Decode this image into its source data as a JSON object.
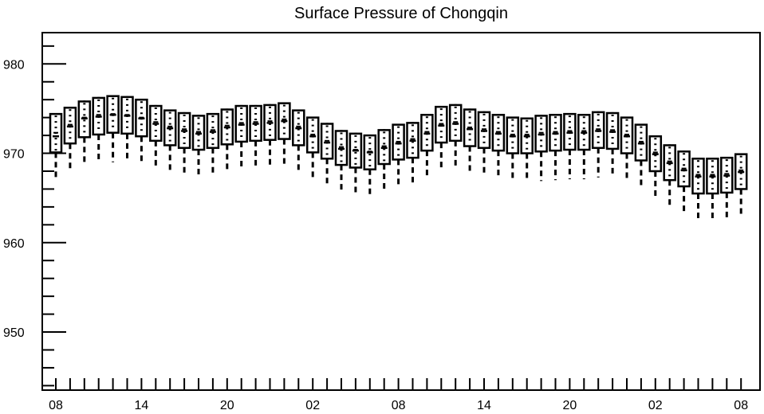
{
  "chart_data": {
    "type": "box",
    "title": "Surface Pressure of Chongqin",
    "xlabel": "",
    "ylabel": "",
    "ylim": [
      943.5,
      983.5
    ],
    "y_ticks": [
      950,
      960,
      970,
      980
    ],
    "y_tick_labels": [
      "950",
      "960",
      "970",
      "980"
    ],
    "x_tick_labels": [
      "08",
      "14",
      "20",
      "02",
      "08",
      "14",
      "20",
      "02",
      "08"
    ],
    "x_tick_positions": [
      0,
      6,
      12,
      18,
      24,
      30,
      36,
      42,
      48
    ],
    "x_tick_units": "hour index",
    "grid": false,
    "colors": {
      "stroke": "#000000",
      "box_fill": "#ffffff",
      "background": "#ffffff"
    },
    "boxes": [
      {
        "x": 0,
        "low": 967.0,
        "q1": 970.1,
        "median": 971.9,
        "q3": 974.4,
        "high": 974.4,
        "mean": 972.3
      },
      {
        "x": 1,
        "low": 968.0,
        "q1": 971.1,
        "median": 973.0,
        "q3": 975.1,
        "high": 975.2,
        "mean": 973.2
      },
      {
        "x": 2,
        "low": 968.6,
        "q1": 971.8,
        "median": 973.9,
        "q3": 975.8,
        "high": 975.9,
        "mean": 974.0
      },
      {
        "x": 3,
        "low": 968.9,
        "q1": 972.1,
        "median": 974.1,
        "q3": 976.2,
        "high": 976.3,
        "mean": 974.3
      },
      {
        "x": 4,
        "low": 969.0,
        "q1": 972.3,
        "median": 974.3,
        "q3": 976.4,
        "high": 976.5,
        "mean": 974.4
      },
      {
        "x": 5,
        "low": 969.1,
        "q1": 972.2,
        "median": 974.2,
        "q3": 976.3,
        "high": 976.4,
        "mean": 974.3
      },
      {
        "x": 6,
        "low": 968.8,
        "q1": 971.9,
        "median": 973.9,
        "q3": 976.0,
        "high": 976.1,
        "mean": 974.0
      },
      {
        "x": 7,
        "low": 968.2,
        "q1": 971.4,
        "median": 973.3,
        "q3": 975.3,
        "high": 975.4,
        "mean": 973.5
      },
      {
        "x": 8,
        "low": 967.7,
        "q1": 970.9,
        "median": 972.8,
        "q3": 974.8,
        "high": 974.9,
        "mean": 973.0
      },
      {
        "x": 9,
        "low": 967.4,
        "q1": 970.6,
        "median": 972.5,
        "q3": 974.5,
        "high": 974.6,
        "mean": 972.7
      },
      {
        "x": 10,
        "low": 967.2,
        "q1": 970.4,
        "median": 972.2,
        "q3": 974.2,
        "high": 974.3,
        "mean": 972.4
      },
      {
        "x": 11,
        "low": 967.5,
        "q1": 970.6,
        "median": 972.4,
        "q3": 974.4,
        "high": 974.5,
        "mean": 972.6
      },
      {
        "x": 12,
        "low": 967.8,
        "q1": 971.0,
        "median": 972.9,
        "q3": 974.9,
        "high": 975.0,
        "mean": 973.1
      },
      {
        "x": 13,
        "low": 968.1,
        "q1": 971.3,
        "median": 973.2,
        "q3": 975.3,
        "high": 975.4,
        "mean": 973.4
      },
      {
        "x": 14,
        "low": 968.2,
        "q1": 971.4,
        "median": 973.3,
        "q3": 975.3,
        "high": 975.4,
        "mean": 973.5
      },
      {
        "x": 15,
        "low": 968.3,
        "q1": 971.5,
        "median": 973.4,
        "q3": 975.4,
        "high": 975.5,
        "mean": 973.6
      },
      {
        "x": 16,
        "low": 968.4,
        "q1": 971.6,
        "median": 973.6,
        "q3": 975.6,
        "high": 975.7,
        "mean": 973.8
      },
      {
        "x": 17,
        "low": 967.7,
        "q1": 970.9,
        "median": 972.8,
        "q3": 974.8,
        "high": 974.9,
        "mean": 973.0
      },
      {
        "x": 18,
        "low": 966.9,
        "q1": 970.1,
        "median": 971.9,
        "q3": 974.0,
        "high": 974.1,
        "mean": 972.1
      },
      {
        "x": 19,
        "low": 966.3,
        "q1": 969.4,
        "median": 971.2,
        "q3": 973.3,
        "high": 973.4,
        "mean": 971.4
      },
      {
        "x": 20,
        "low": 965.5,
        "q1": 968.7,
        "median": 970.5,
        "q3": 972.5,
        "high": 972.6,
        "mean": 970.7
      },
      {
        "x": 21,
        "low": 965.3,
        "q1": 968.4,
        "median": 970.3,
        "q3": 972.2,
        "high": 972.3,
        "mean": 970.4
      },
      {
        "x": 22,
        "low": 965.1,
        "q1": 968.2,
        "median": 970.1,
        "q3": 972.0,
        "high": 972.1,
        "mean": 970.2
      },
      {
        "x": 23,
        "low": 965.6,
        "q1": 968.8,
        "median": 970.6,
        "q3": 972.6,
        "high": 972.7,
        "mean": 970.8
      },
      {
        "x": 24,
        "low": 966.1,
        "q1": 969.3,
        "median": 971.1,
        "q3": 973.2,
        "high": 973.3,
        "mean": 971.3
      },
      {
        "x": 25,
        "low": 966.3,
        "q1": 969.5,
        "median": 971.4,
        "q3": 973.4,
        "high": 973.5,
        "mean": 971.6
      },
      {
        "x": 26,
        "low": 967.1,
        "q1": 970.3,
        "median": 972.2,
        "q3": 974.3,
        "high": 974.4,
        "mean": 972.4
      },
      {
        "x": 27,
        "low": 968.0,
        "q1": 971.2,
        "median": 973.1,
        "q3": 975.2,
        "high": 975.3,
        "mean": 973.3
      },
      {
        "x": 28,
        "low": 968.2,
        "q1": 971.4,
        "median": 973.3,
        "q3": 975.4,
        "high": 975.5,
        "mean": 973.5
      },
      {
        "x": 29,
        "low": 967.7,
        "q1": 970.8,
        "median": 972.7,
        "q3": 974.9,
        "high": 975.0,
        "mean": 972.9
      },
      {
        "x": 30,
        "low": 967.4,
        "q1": 970.6,
        "median": 972.5,
        "q3": 974.6,
        "high": 974.7,
        "mean": 972.7
      },
      {
        "x": 31,
        "low": 967.1,
        "q1": 970.3,
        "median": 972.2,
        "q3": 974.3,
        "high": 974.4,
        "mean": 972.4
      },
      {
        "x": 32,
        "low": 966.8,
        "q1": 970.0,
        "median": 971.9,
        "q3": 974.0,
        "high": 974.1,
        "mean": 972.1
      },
      {
        "x": 33,
        "low": 966.8,
        "q1": 970.0,
        "median": 971.9,
        "q3": 973.9,
        "high": 974.0,
        "mean": 972.1
      },
      {
        "x": 34,
        "low": 966.9,
        "q1": 970.2,
        "median": 972.1,
        "q3": 974.2,
        "high": 974.3,
        "mean": 972.3
      },
      {
        "x": 35,
        "low": 967.0,
        "q1": 970.3,
        "median": 972.2,
        "q3": 974.3,
        "high": 974.4,
        "mean": 972.4
      },
      {
        "x": 36,
        "low": 967.1,
        "q1": 970.4,
        "median": 972.3,
        "q3": 974.4,
        "high": 974.5,
        "mean": 972.5
      },
      {
        "x": 37,
        "low": 967.1,
        "q1": 970.4,
        "median": 972.3,
        "q3": 974.3,
        "high": 974.4,
        "mean": 972.5
      },
      {
        "x": 38,
        "low": 967.3,
        "q1": 970.6,
        "median": 972.5,
        "q3": 974.6,
        "high": 974.7,
        "mean": 972.7
      },
      {
        "x": 39,
        "low": 967.3,
        "q1": 970.5,
        "median": 972.4,
        "q3": 974.5,
        "high": 974.6,
        "mean": 972.6
      },
      {
        "x": 40,
        "low": 966.8,
        "q1": 970.0,
        "median": 971.9,
        "q3": 974.0,
        "high": 974.1,
        "mean": 972.1
      },
      {
        "x": 41,
        "low": 966.0,
        "q1": 969.2,
        "median": 971.1,
        "q3": 973.2,
        "high": 973.3,
        "mean": 971.3
      },
      {
        "x": 42,
        "low": 964.8,
        "q1": 968.0,
        "median": 969.9,
        "q3": 971.9,
        "high": 972.0,
        "mean": 970.1
      },
      {
        "x": 43,
        "low": 963.8,
        "q1": 967.0,
        "median": 968.9,
        "q3": 970.9,
        "high": 971.0,
        "mean": 969.1
      },
      {
        "x": 44,
        "low": 963.1,
        "q1": 966.3,
        "median": 968.1,
        "q3": 970.2,
        "high": 970.3,
        "mean": 968.3
      },
      {
        "x": 45,
        "low": 962.4,
        "q1": 965.5,
        "median": 967.4,
        "q3": 969.4,
        "high": 969.5,
        "mean": 967.6
      },
      {
        "x": 46,
        "low": 962.4,
        "q1": 965.5,
        "median": 967.4,
        "q3": 969.4,
        "high": 969.5,
        "mean": 967.6
      },
      {
        "x": 47,
        "low": 962.5,
        "q1": 965.6,
        "median": 967.5,
        "q3": 969.5,
        "high": 969.6,
        "mean": 967.7
      },
      {
        "x": 48,
        "low": 962.8,
        "q1": 966.0,
        "median": 967.9,
        "q3": 969.9,
        "high": 970.0,
        "mean": 968.1
      }
    ]
  }
}
